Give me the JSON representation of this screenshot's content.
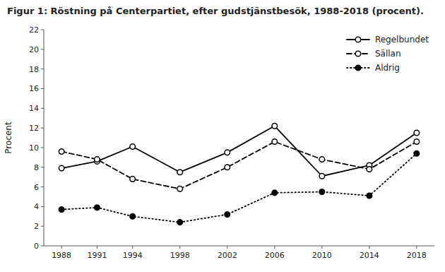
{
  "chart_data": {
    "type": "line",
    "title": "Figur 1: Röstning på Centerpartiet, efter gudstjänstbesök, 1988-2018 (procent).",
    "y_label": "Procent",
    "x": [
      1988,
      1991,
      1994,
      1998,
      2002,
      2006,
      2010,
      2014,
      2018
    ],
    "series": [
      {
        "name": "Regelbundet",
        "color": "black",
        "line_style": "solid",
        "marker": "open-circle",
        "values": [
          7.9,
          8.6,
          10.1,
          7.5,
          9.5,
          12.2,
          7.1,
          8.2,
          11.5
        ]
      },
      {
        "name": "Sällan",
        "color": "black",
        "line_style": "dashed",
        "marker": "open-circle",
        "values": [
          9.6,
          8.8,
          6.8,
          5.8,
          8.0,
          10.6,
          8.8,
          7.8,
          10.6
        ]
      },
      {
        "name": "Aldrig",
        "color": "black",
        "line_style": "dotted",
        "marker": "filled-circle",
        "values": [
          3.7,
          3.9,
          3.0,
          2.4,
          3.2,
          5.4,
          5.5,
          5.1,
          9.4
        ]
      }
    ],
    "xlim": [
      1986.5,
      2019.5
    ],
    "xticks": [
      1988,
      1991,
      1994,
      1998,
      2002,
      2006,
      2010,
      2014,
      2018
    ],
    "ylim": [
      0,
      22
    ],
    "yticks": [
      0,
      2,
      4,
      6,
      8,
      10,
      12,
      14,
      16,
      18,
      20,
      22
    ],
    "grid": false,
    "legend": "upper right"
  }
}
